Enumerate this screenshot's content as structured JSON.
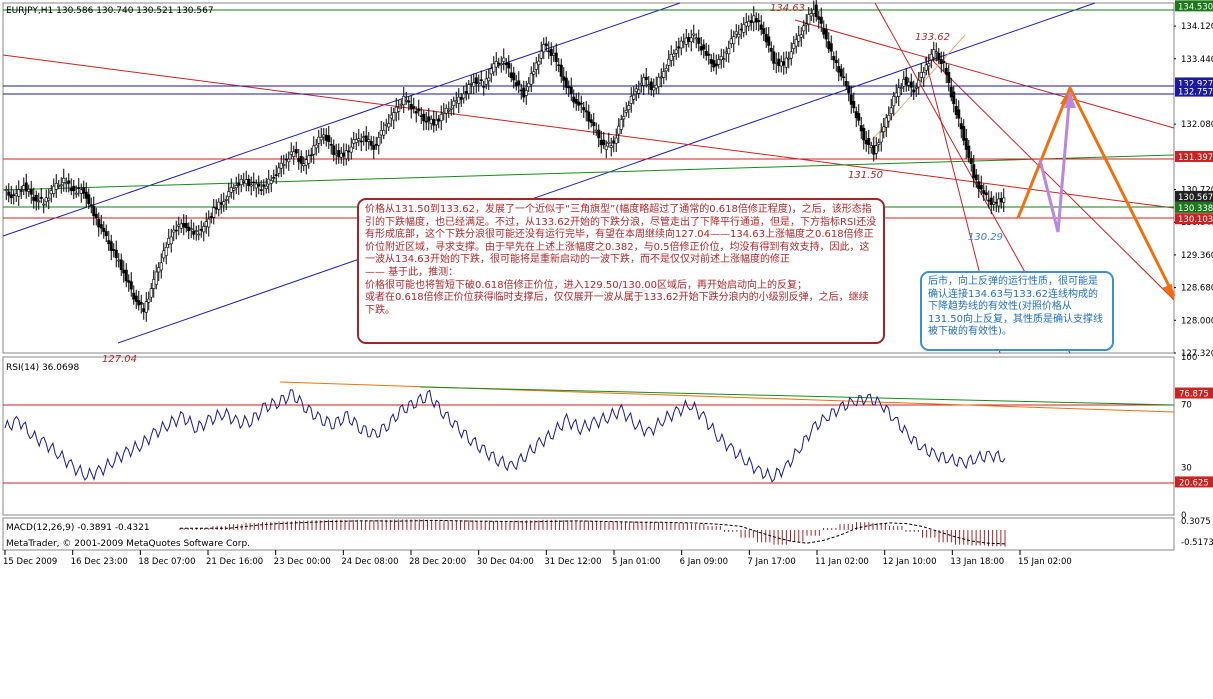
{
  "header": {
    "symbol_line": "EURJPY,H1  130.586 130.740 130.521 130.567",
    "rsi_label": "RSI(14) 36.0698",
    "macd_label": "MACD(12,26,9) -0.3891 -0.4321",
    "copyright": "MetaTrader, © 2001-2009 MetaQuotes Software Corp."
  },
  "price_axis": {
    "ticks": [
      "134.120",
      "133.440",
      "132.080",
      "130.720",
      "130.040",
      "129.360",
      "128.680",
      "128.000",
      "127.320"
    ],
    "labels": [
      {
        "text": "134.530",
        "color": "#1a7a1a"
      },
      {
        "text": "132.927",
        "color": "#1a1a9a"
      },
      {
        "text": "132.757",
        "color": "#1a1a9a"
      },
      {
        "text": "131.397",
        "color": "#cc2222"
      },
      {
        "text": "130.567",
        "color": "#222222"
      },
      {
        "text": "130.338",
        "color": "#1a7a1a"
      },
      {
        "text": "130.103",
        "color": "#cc2222"
      }
    ]
  },
  "rsi_axis": {
    "ticks": [
      "100",
      "70",
      "30",
      "0"
    ],
    "labels": [
      {
        "text": "76.875",
        "color": "#cc2222"
      },
      {
        "text": "20.625",
        "color": "#cc2222"
      }
    ]
  },
  "macd_axis": {
    "ticks": [
      "0.3075",
      "-0.5173"
    ]
  },
  "time_axis": [
    "15 Dec 2009",
    "16 Dec 23:00",
    "18 Dec 07:00",
    "21 Dec 16:00",
    "23 Dec 00:00",
    "24 Dec 08:00",
    "28 Dec 20:00",
    "30 Dec 04:00",
    "31 Dec 12:00",
    "5 Jan 01:00",
    "6 Jan 09:00",
    "7 Jan 17:00",
    "11 Jan 02:00",
    "12 Jan 10:00",
    "13 Jan 18:00",
    "15 Jan 02:00"
  ],
  "annotations": {
    "high_134": "134.63",
    "high_133": "133.62",
    "low_131": "131.50",
    "low_130": "130.29",
    "low_127": "127.04"
  },
  "notes": {
    "main": "价格从131.50到133.62，发展了一个近似于“三角旗型”(幅度略超过了通常的0.618倍修正程度)，之后，该形态指引的下跌幅度，也已经满足。不过，从133.62开始的下跌分浪，尽管走出了下降平行通道，但是，下方指标RSI还没有形成底部，这个下跌分浪很可能还没有运行完毕，有望在本周继续向127.04——134.63上涨幅度之0.618倍修正价位附近区域，寻求支撑。由于早先在上述上涨幅度之0.382，与0.5倍修正价位，均没有得到有效支持，因此，这一波从134.63开始的下跌，很可能将是重新启动的一波下跌，而不是仅仅对前述上涨幅度的修正\n—— 基于此，推测：\n价格很可能也将暂短下破0.618倍修正价位，进入129.50/130.00区域后，再开始启动向上的反复；\n或者在0.618倍修正价位获得临时支撑后，仅仅展开一波从属于133.62开始下跌分浪内的小级别反弹，之后，继续下跌。",
    "side": "后市，向上反弹的运行性质，很可能是确认连接134.63与133.62连线构成的下降趋势线的有效性(对照价格从131.50向上反复，其性质是确认支撑线被下破的有效性)。"
  },
  "chart_data": [
    {
      "type": "candlestick",
      "title": "EURJPY,H1",
      "ylim": [
        127.32,
        134.6
      ],
      "x_ticks": [
        "15 Dec 2009",
        "16 Dec 23:00",
        "18 Dec 07:00",
        "21 Dec 16:00",
        "23 Dec 00:00",
        "24 Dec 08:00",
        "28 Dec 20:00",
        "30 Dec 04:00",
        "31 Dec 12:00",
        "5 Jan 01:00",
        "6 Jan 09:00",
        "7 Jan 17:00",
        "11 Jan 02:00",
        "12 Jan 10:00",
        "13 Jan 18:00",
        "15 Jan 02:00"
      ],
      "price_path": [
        130.7,
        130.55,
        130.8,
        130.55,
        130.45,
        130.75,
        130.9,
        130.7,
        130.7,
        130.2,
        129.8,
        129.4,
        129.0,
        128.5,
        128.2,
        128.8,
        129.4,
        129.9,
        130.0,
        129.8,
        129.9,
        130.3,
        130.5,
        130.8,
        130.9,
        130.8,
        130.75,
        131.0,
        131.3,
        131.5,
        131.2,
        131.6,
        131.9,
        131.5,
        131.4,
        131.7,
        131.8,
        131.6,
        132.0,
        132.3,
        132.6,
        132.4,
        132.2,
        132.1,
        132.3,
        132.5,
        132.7,
        133.0,
        132.9,
        133.3,
        133.4,
        133.0,
        132.7,
        133.2,
        133.7,
        133.5,
        133.0,
        132.6,
        132.4,
        132.0,
        131.6,
        131.7,
        132.3,
        132.7,
        133.0,
        132.8,
        133.2,
        133.6,
        133.8,
        133.9,
        133.6,
        133.3,
        133.5,
        133.9,
        134.1,
        134.3,
        134.0,
        133.4,
        133.3,
        133.7,
        134.1,
        134.5,
        134.0,
        133.4,
        133.0,
        132.4,
        131.8,
        131.5,
        132.0,
        132.6,
        133.0,
        132.8,
        133.2,
        133.6,
        133.3,
        132.5,
        131.8,
        131.0,
        130.6,
        130.4,
        130.55
      ],
      "key_levels": {
        "high_1": 134.63,
        "high_2": 133.62,
        "low_1": 131.5,
        "low_2": 130.29,
        "low_3": 127.04
      },
      "horizontal_lines": [
        134.53,
        132.927,
        132.757,
        131.397,
        130.338,
        130.103
      ]
    },
    {
      "type": "line",
      "title": "RSI(14)",
      "ylim": [
        0,
        100
      ],
      "levels": [
        70,
        30,
        76.875,
        20.625
      ],
      "values": [
        55,
        60,
        50,
        45,
        38,
        30,
        25,
        28,
        35,
        40,
        45,
        52,
        58,
        62,
        55,
        60,
        65,
        58,
        60,
        68,
        72,
        76,
        68,
        60,
        58,
        62,
        55,
        50,
        58,
        66,
        72,
        75,
        65,
        55,
        48,
        40,
        35,
        30,
        38,
        45,
        52,
        60,
        55,
        58,
        62,
        66,
        58,
        52,
        60,
        65,
        70,
        62,
        50,
        42,
        35,
        28,
        24,
        30,
        42,
        55,
        62,
        68,
        72,
        74,
        70,
        60,
        50,
        42,
        38,
        35,
        33,
        36,
        38,
        36
      ]
    },
    {
      "type": "bar",
      "title": "MACD(12,26,9)",
      "ylim": [
        -0.5173,
        0.3075
      ],
      "values": [
        0.05,
        0.05,
        0.1,
        0.15,
        0.18,
        0.2,
        0.22,
        0.24,
        0.25,
        0.26,
        0.26,
        0.25,
        0.26,
        0.27,
        0.27,
        0.26,
        0.25,
        0.25,
        0.24,
        0.23,
        0.24,
        0.25,
        0.26,
        0.25,
        0.24,
        0.23,
        0.22,
        0.22,
        0.21,
        0.2,
        0.18,
        0.15,
        0.1,
        -0.05,
        -0.2,
        -0.32,
        -0.38,
        -0.3,
        -0.15,
        0.05,
        0.15,
        0.2,
        0.18,
        0.1,
        -0.05,
        -0.2,
        -0.32,
        -0.38,
        -0.4,
        -0.42,
        -0.43
      ]
    }
  ]
}
